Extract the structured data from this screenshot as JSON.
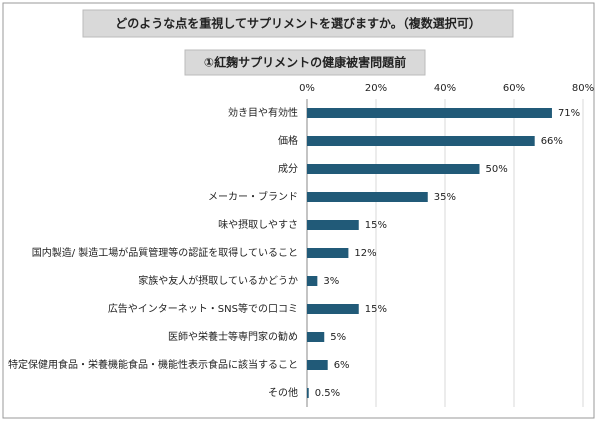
{
  "chart_data": {
    "type": "hbar",
    "title": "どのような点を重視してサプリメントを選びますか。（複数選択可）",
    "subtitle": "①紅麹サプリメントの健康被害問題前",
    "categories": [
      "効き目や有効性",
      "価格",
      "成分",
      "メーカー・ブランド",
      "味や摂取しやすさ",
      "国内製造/ 製造工場が品質管理等の認証を取得していること",
      "家族や友人が摂取しているかどうか",
      "広告やインターネット・SNS等での口コミ",
      "医師や栄養士等専門家の勧め",
      "特定保健用食品・栄養機能食品・機能性表示食品に該当すること",
      "その他"
    ],
    "values": [
      71,
      66,
      50,
      35,
      15,
      12,
      3,
      15,
      5,
      6,
      0.5
    ],
    "value_labels": [
      "71%",
      "66%",
      "50%",
      "35%",
      "15%",
      "12%",
      "3%",
      "15%",
      "5%",
      "6%",
      "0.5%"
    ],
    "color": "#215a78",
    "xlim": [
      0,
      80
    ],
    "xticks": [
      {
        "value": 0,
        "label": "0%"
      },
      {
        "value": 20,
        "label": "20%"
      },
      {
        "value": 40,
        "label": "40%"
      },
      {
        "value": 60,
        "label": "60%"
      },
      {
        "value": 80,
        "label": "80%"
      }
    ],
    "grid": true
  }
}
